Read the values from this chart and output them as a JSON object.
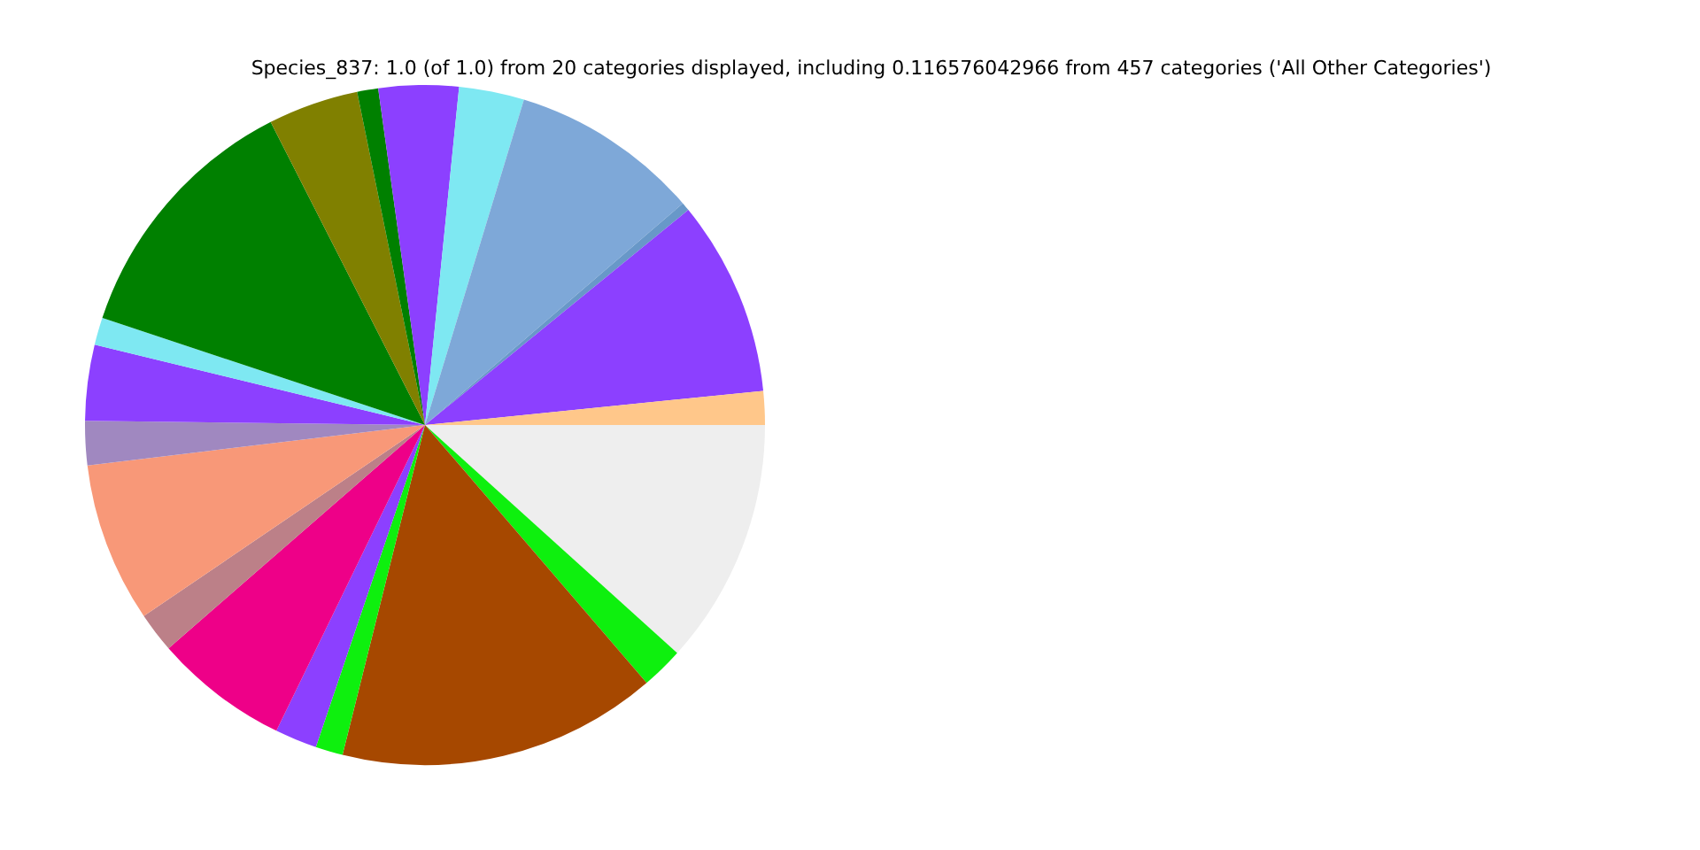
{
  "chart_data": {
    "type": "pie",
    "title": "Species_837: 1.0 (of 1.0) from 20 categories displayed, including 0.116576042966 from 457 categories ('All Other Categories')",
    "categories": [
      null,
      null,
      null,
      null,
      null,
      null,
      null,
      null,
      null,
      null,
      null,
      null,
      null,
      null,
      null,
      null,
      null,
      null,
      null,
      null
    ],
    "values": [
      11.7,
      2.0,
      15.2,
      1.3,
      2.0,
      6.4,
      1.9,
      7.6,
      2.1,
      3.6,
      1.3,
      12.4,
      4.3,
      1.0,
      3.8,
      3.1,
      9.0,
      0.4,
      9.3,
      1.6
    ],
    "colors": [
      "#eeeeee",
      "#0ef00e",
      "#a64800",
      "#0ef00e",
      "#8c40ff",
      "#ee0088",
      "#bc8088",
      "#f89878",
      "#a088c0",
      "#8c40ff",
      "#7ee8f2",
      "#008000",
      "#808000",
      "#008000",
      "#8c40ff",
      "#7ee8f2",
      "#7ea8d8",
      "#6898c8",
      "#8c40ff",
      "#ffc78a"
    ],
    "legend": false
  }
}
